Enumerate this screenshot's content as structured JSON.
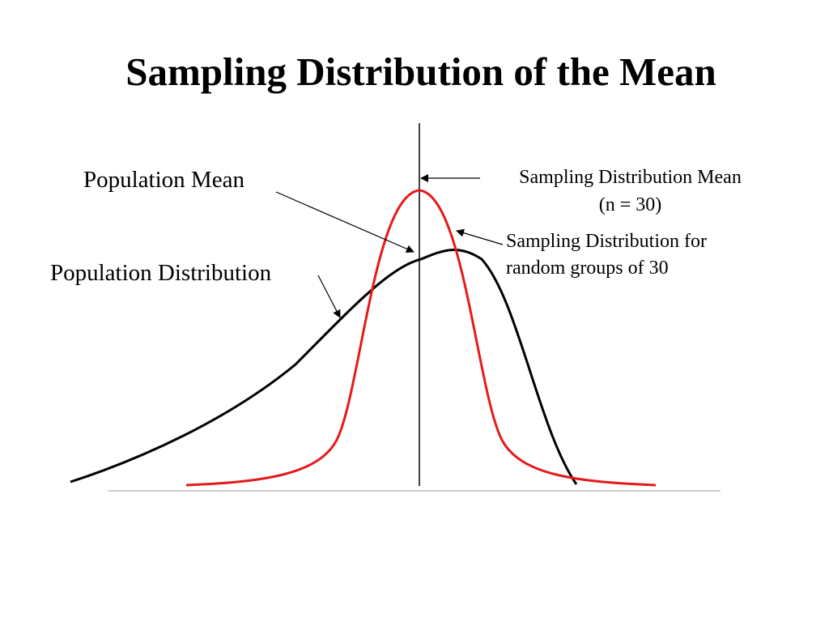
{
  "title": "Sampling Distribution of the Mean",
  "labels": {
    "population_mean": "Population Mean",
    "population_distribution": "Population Distribution",
    "sampling_mean_line1": "Sampling Distribution Mean",
    "sampling_mean_line2": "(n = 30)",
    "sampling_dist_line1": "Sampling Distribution for",
    "sampling_dist_line2": "random groups of 30"
  },
  "colors": {
    "population_curve": "#000000",
    "sampling_curve": "#e41a1c",
    "baseline": "#bdbdbd",
    "mean_line": "#000000"
  }
}
